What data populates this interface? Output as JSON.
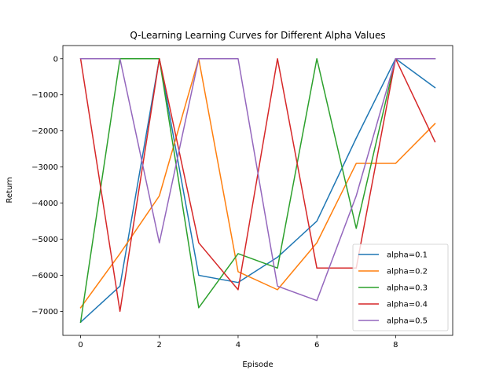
{
  "chart_data": {
    "type": "line",
    "title": "Q-Learning Learning Curves for Different Alpha Values",
    "xlabel": "Episode",
    "ylabel": "Return",
    "xlim": [
      -0.45,
      9.45
    ],
    "ylim": [
      -7665,
      365
    ],
    "x": [
      0,
      1,
      2,
      3,
      4,
      5,
      6,
      7,
      8,
      9
    ],
    "xticks": [
      0,
      2,
      4,
      6,
      8
    ],
    "yticks": [
      -7000,
      -6000,
      -5000,
      -4000,
      -3000,
      -2000,
      -1000,
      0
    ],
    "grid": false,
    "legend_position": "lower right",
    "series": [
      {
        "name": "alpha=0.1",
        "color": "#1f77b4",
        "values": [
          -7300,
          -6300,
          0,
          -6000,
          -6200,
          -5500,
          -4500,
          -2200,
          0,
          -800
        ]
      },
      {
        "name": "alpha=0.2",
        "color": "#ff7f0e",
        "values": [
          -6900,
          -5400,
          -3800,
          0,
          -5900,
          -6400,
          -5100,
          -2900,
          -2900,
          -1800
        ]
      },
      {
        "name": "alpha=0.3",
        "color": "#2ca02c",
        "values": [
          -7300,
          0,
          0,
          -6900,
          -5400,
          -5800,
          0,
          -4700,
          0,
          0
        ]
      },
      {
        "name": "alpha=0.4",
        "color": "#d62728",
        "values": [
          0,
          -7000,
          0,
          -5100,
          -6400,
          0,
          -5800,
          -5800,
          0,
          -2300
        ]
      },
      {
        "name": "alpha=0.5",
        "color": "#9467bd",
        "values": [
          0,
          0,
          -5100,
          0,
          0,
          -6300,
          -6700,
          -3800,
          0,
          0
        ]
      }
    ]
  }
}
